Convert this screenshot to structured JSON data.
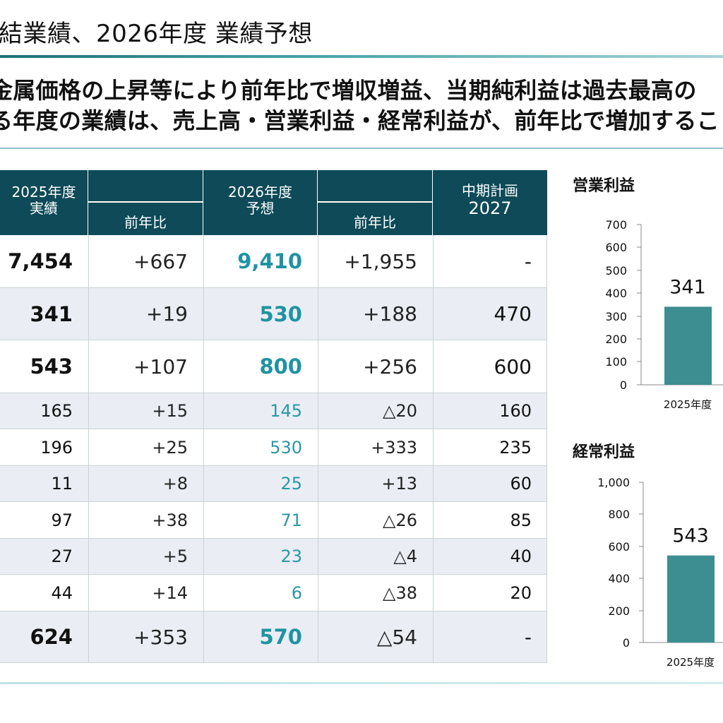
{
  "header": {
    "title": "結業績、2026年度 業績予想"
  },
  "summary": {
    "line1": "金属価格の上昇等により前年比で増収増益、当期純利益は過去最高の",
    "line2": "る年度の業績は、売上高・営業利益・経常利益が、前年比で増加すること"
  },
  "table": {
    "headers": {
      "actual_2025_l1": "2025年度",
      "actual_2025_l2": "実績",
      "yoy_2025": "前年比",
      "forecast_2026_l1": "2026年度",
      "forecast_2026_l2": "予想",
      "yoy_2026": "前年比",
      "plan_l1": "中期計画",
      "plan_l2": "2027"
    },
    "rows": [
      {
        "actual": "7,454",
        "yoy": "+667",
        "forecast": "9,410",
        "yoy2": "+1,955",
        "plan": "-"
      },
      {
        "actual": "341",
        "yoy": "+19",
        "forecast": "530",
        "yoy2": "+188",
        "plan": "470"
      },
      {
        "actual": "543",
        "yoy": "+107",
        "forecast": "800",
        "yoy2": "+256",
        "plan": "600"
      },
      {
        "actual": "165",
        "yoy": "+15",
        "forecast": "145",
        "yoy2": "△20",
        "plan": "160"
      },
      {
        "actual": "196",
        "yoy": "+25",
        "forecast": "530",
        "yoy2": "+333",
        "plan": "235"
      },
      {
        "actual": "11",
        "yoy": "+8",
        "forecast": "25",
        "yoy2": "+13",
        "plan": "60"
      },
      {
        "actual": "97",
        "yoy": "+38",
        "forecast": "71",
        "yoy2": "△26",
        "plan": "85"
      },
      {
        "actual": "27",
        "yoy": "+5",
        "forecast": "23",
        "yoy2": "△4",
        "plan": "40"
      },
      {
        "actual": "44",
        "yoy": "+14",
        "forecast": "6",
        "yoy2": "△38",
        "plan": "20"
      },
      {
        "actual": "624",
        "yoy": "+353",
        "forecast": "570",
        "yoy2": "△54",
        "plan": "-"
      }
    ]
  },
  "chart_data": [
    {
      "type": "bar",
      "title": "営業利益",
      "categories": [
        "2025年度"
      ],
      "values": [
        341
      ],
      "data_labels": [
        "341"
      ],
      "yticks": [
        "0",
        "100",
        "200",
        "300",
        "400",
        "500",
        "600",
        "700"
      ],
      "ylim": [
        0,
        700
      ],
      "bar_color": "#3d8e91"
    },
    {
      "type": "bar",
      "title": "経常利益",
      "categories": [
        "2025年度"
      ],
      "values": [
        543
      ],
      "data_labels": [
        "543"
      ],
      "yticks": [
        "0",
        "200",
        "400",
        "600",
        "800",
        "1,000"
      ],
      "ylim": [
        0,
        1000
      ],
      "bar_color": "#3d8e91"
    }
  ]
}
